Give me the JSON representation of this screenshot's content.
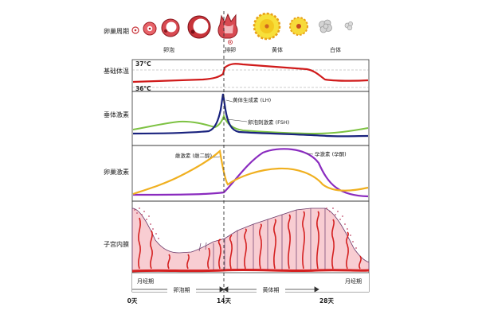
{
  "rows": {
    "ovarian_cycle": "卵巢周期",
    "basal_temp": "基础体温",
    "pituitary": "垂体激素",
    "ovarian_hormone": "卵巢激素",
    "endometrium": "子宫内膜"
  },
  "ovary_stages": {
    "follicle": "卵泡",
    "ovulation": "排卵",
    "corpus_luteum": "黄体",
    "corpus_albicans": "白体"
  },
  "temperature": {
    "high": "37°C",
    "low": "36°C"
  },
  "pituitary_legend": {
    "lh": "黄体生成素 (LH)",
    "fsh": "卵泡刺激素 (FSH)"
  },
  "ovarian_legend": {
    "estrogen": "雌激素 (雌二醇)",
    "progesterone": "孕激素 (孕酮)"
  },
  "phases": {
    "menstrual_start": "月经期",
    "follicular": "卵泡期",
    "luteal": "黄体期",
    "menstrual_end": "月经期"
  },
  "days": {
    "d0": "0天",
    "d14": "14天",
    "d28": "28天"
  },
  "colors": {
    "lh": "#1a237e",
    "fsh": "#7dc242",
    "temperature": "#d01a1a",
    "estrogen": "#f0b020",
    "progesterone": "#8a2bbf",
    "endometrium_fill": "#f8cdd2",
    "vessel": "#d42020"
  }
}
